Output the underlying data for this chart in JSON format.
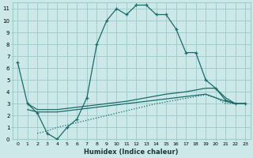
{
  "xlabel": "Humidex (Indice chaleur)",
  "xlim": [
    -0.5,
    23.5
  ],
  "ylim": [
    0,
    11.5
  ],
  "xtick_labels": [
    "0",
    "1",
    "2",
    "3",
    "4",
    "5",
    "6",
    "7",
    "8",
    "9",
    "10",
    "11",
    "12",
    "13",
    "14",
    "15",
    "16",
    "17",
    "18",
    "19",
    "20",
    "21",
    "22",
    "23"
  ],
  "ytick_labels": [
    "0",
    "1",
    "2",
    "3",
    "4",
    "5",
    "6",
    "7",
    "8",
    "9",
    "10",
    "11"
  ],
  "bg_color": "#cce8e8",
  "line_color": "#1a6b6b",
  "grid_color": "#9ecece",
  "lines": [
    {
      "x": [
        0,
        1,
        2,
        3,
        4,
        5,
        6,
        7,
        8,
        9,
        10,
        11,
        12,
        13,
        14,
        15,
        16,
        17,
        18,
        19,
        20,
        21,
        22,
        23
      ],
      "y": [
        6.5,
        3.0,
        2.2,
        0.5,
        0.0,
        1.0,
        1.7,
        3.5,
        8.0,
        10.0,
        11.0,
        10.5,
        11.3,
        11.3,
        10.5,
        10.5,
        9.3,
        7.3,
        7.3,
        5.0,
        4.3,
        3.3,
        3.0,
        3.0
      ],
      "style": "-",
      "marker": "+"
    },
    {
      "x": [
        1,
        2,
        3,
        4,
        5,
        6,
        7,
        8,
        9,
        10,
        11,
        12,
        13,
        14,
        15,
        16,
        17,
        18,
        19,
        20,
        21,
        22,
        23
      ],
      "y": [
        3.0,
        2.5,
        2.5,
        2.5,
        2.6,
        2.7,
        2.8,
        2.9,
        3.0,
        3.1,
        3.2,
        3.35,
        3.5,
        3.65,
        3.8,
        3.9,
        4.0,
        4.15,
        4.3,
        4.3,
        3.5,
        3.0,
        3.0
      ],
      "style": "-",
      "marker": null
    },
    {
      "x": [
        1,
        2,
        3,
        4,
        5,
        6,
        7,
        8,
        9,
        10,
        11,
        12,
        13,
        14,
        15,
        16,
        17,
        18,
        19,
        20,
        21,
        22,
        23
      ],
      "y": [
        2.5,
        2.3,
        2.3,
        2.3,
        2.4,
        2.5,
        2.6,
        2.7,
        2.8,
        2.9,
        3.0,
        3.1,
        3.2,
        3.3,
        3.4,
        3.5,
        3.6,
        3.7,
        3.8,
        3.5,
        3.2,
        3.0,
        3.0
      ],
      "style": "-",
      "marker": null
    },
    {
      "x": [
        2,
        3,
        4,
        5,
        6,
        7,
        8,
        9,
        10,
        11,
        12,
        13,
        14,
        15,
        16,
        17,
        18,
        19,
        20,
        21,
        22,
        23
      ],
      "y": [
        0.5,
        0.7,
        1.0,
        1.2,
        1.4,
        1.6,
        1.8,
        2.0,
        2.2,
        2.4,
        2.6,
        2.8,
        3.0,
        3.15,
        3.3,
        3.45,
        3.6,
        3.75,
        3.5,
        3.0,
        3.0,
        3.0
      ],
      "style": ":",
      "marker": null
    }
  ]
}
